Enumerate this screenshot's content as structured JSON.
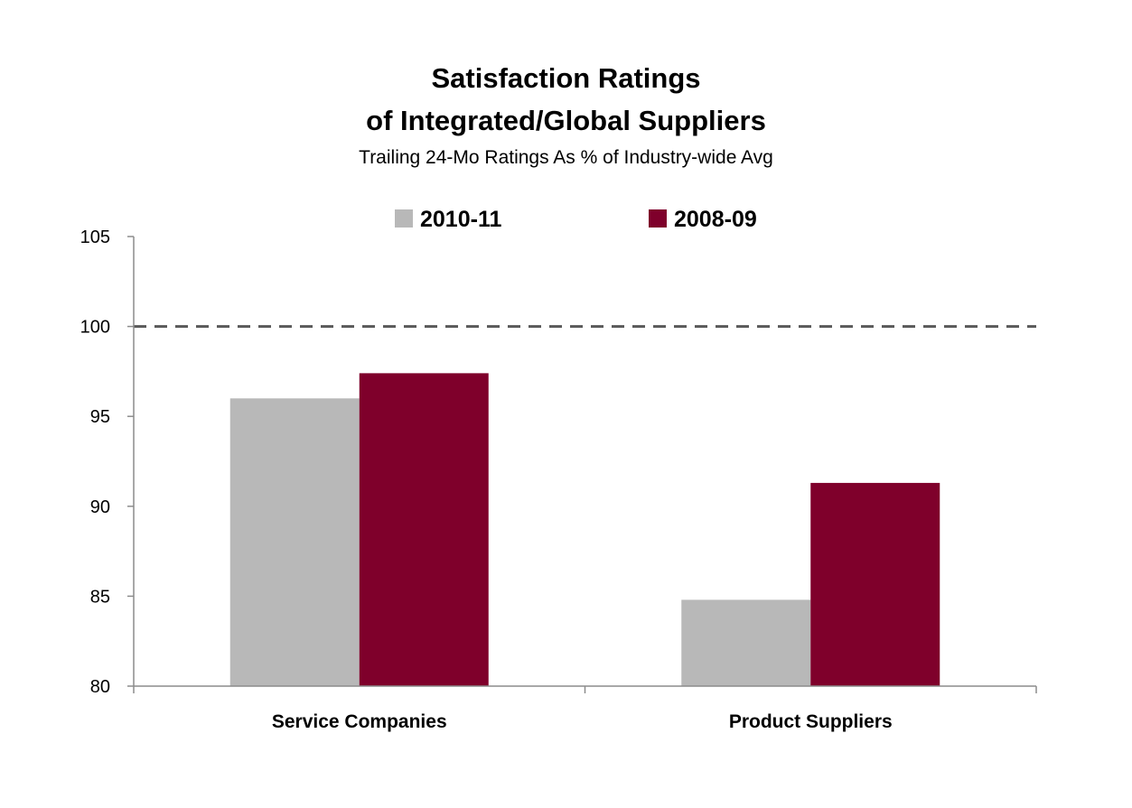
{
  "chart_data": {
    "type": "bar",
    "title": "Satisfaction Ratings",
    "title_line2": "of Integrated/Global Suppliers",
    "subtitle": "Trailing 24-Mo Ratings As % of Industry-wide Avg",
    "xlabel": "",
    "ylabel": "",
    "categories": [
      "Service Companies",
      "Product Suppliers"
    ],
    "series": [
      {
        "name": "2010-11",
        "color": "#b8b8b8",
        "values": [
          96.0,
          84.8
        ]
      },
      {
        "name": "2008-09",
        "color": "#7f002b",
        "values": [
          97.4,
          91.3
        ]
      }
    ],
    "ylim": [
      80,
      105
    ],
    "yticks": [
      "80",
      "85",
      "90",
      "95",
      "100",
      "105"
    ],
    "reference_line": {
      "value": 100,
      "style": "dashed",
      "color": "#595959"
    },
    "grid": false,
    "legend_position": "top-center"
  }
}
